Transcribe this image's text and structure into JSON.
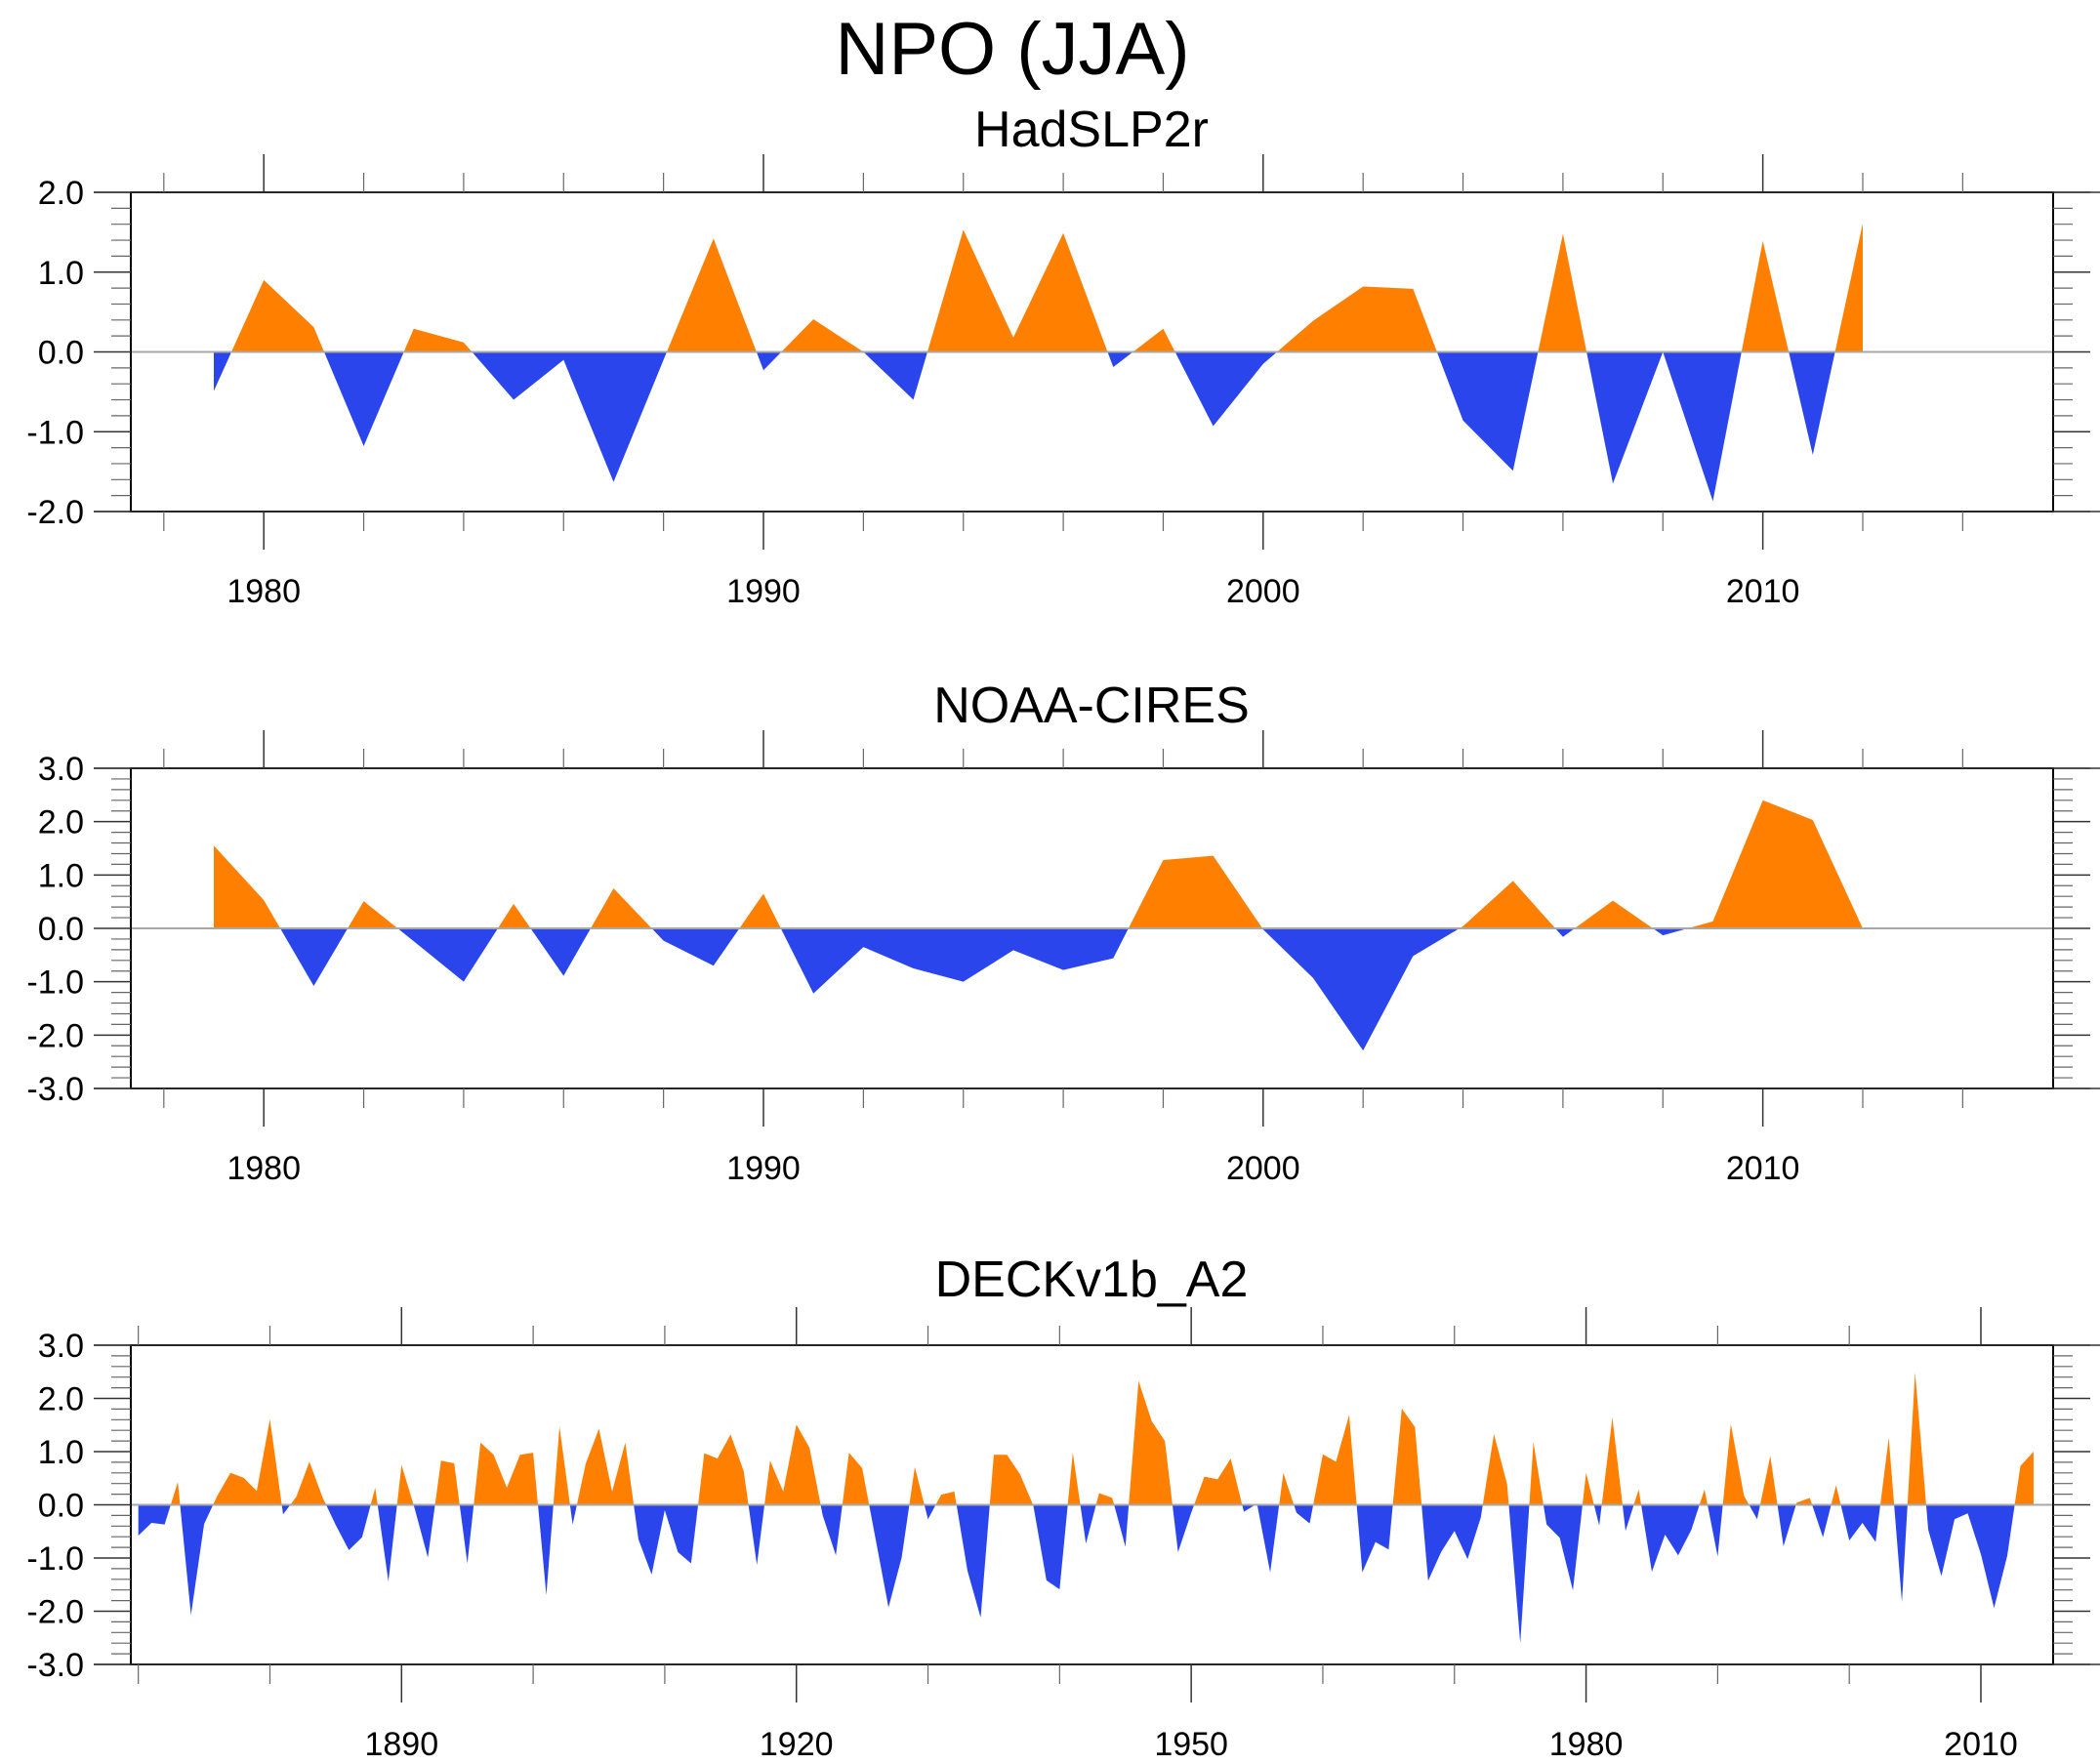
{
  "figure_title": "NPO (JJA)",
  "colors": {
    "positive": "#ff8000",
    "negative": "#2a45eb",
    "zero_line": "#a8a8a8"
  },
  "chart_data": [
    {
      "type": "area",
      "title": "HadSLP2r",
      "xlabel": "",
      "ylabel": "",
      "xlim": [
        1978,
        2014
      ],
      "ylim": [
        -2.0,
        2.0
      ],
      "xticks_major": [
        1980,
        1990,
        2000,
        2010
      ],
      "xticks_major_labels": [
        "1980",
        "1990",
        "2000",
        "2010"
      ],
      "xticks_minor_step": 2,
      "yticks": [
        2.0,
        1.0,
        0.0,
        -1.0,
        -2.0
      ],
      "ytick_labels": [
        "2.0",
        "1.0",
        "0.0",
        "-1.0",
        "-2.0"
      ],
      "yticks_minor_step": 0.2,
      "grid": false,
      "fill_above_zero": "orange",
      "fill_below_zero": "blue",
      "x": [
        1979,
        1980,
        1981,
        1982,
        1983,
        1984,
        1985,
        1986,
        1987,
        1988,
        1989,
        1990,
        1991,
        1992,
        1993,
        1994,
        1995,
        1996,
        1997,
        1998,
        1999,
        2000,
        2001,
        2002,
        2003,
        2004,
        2005,
        2006,
        2007,
        2008,
        2009,
        2010,
        2011,
        2012
      ],
      "values": [
        -0.49,
        0.9,
        0.31,
        -1.18,
        0.29,
        0.12,
        -0.6,
        -0.1,
        -1.63,
        -0.1,
        1.42,
        -0.23,
        0.41,
        0.0,
        -0.6,
        1.53,
        0.18,
        1.49,
        -0.19,
        0.29,
        -0.93,
        -0.15,
        0.39,
        0.82,
        0.79,
        -0.86,
        -1.49,
        1.48,
        -1.65,
        0.0,
        -1.87,
        1.39,
        -1.29,
        1.61
      ]
    },
    {
      "type": "area",
      "title": "NOAA-CIRES",
      "xlabel": "",
      "ylabel": "",
      "xlim": [
        1978,
        2014
      ],
      "ylim": [
        -3.0,
        3.0
      ],
      "xticks_major": [
        1980,
        1990,
        2000,
        2010
      ],
      "xticks_major_labels": [
        "1980",
        "1990",
        "2000",
        "2010"
      ],
      "xticks_minor_step": 2,
      "yticks": [
        3.0,
        2.0,
        1.0,
        0.0,
        -1.0,
        -2.0,
        -3.0
      ],
      "ytick_labels": [
        "3.0",
        "2.0",
        "1.0",
        "0.0",
        "-1.0",
        "-2.0",
        "-3.0"
      ],
      "yticks_minor_step": 0.2,
      "grid": false,
      "fill_above_zero": "orange",
      "fill_below_zero": "blue",
      "x": [
        1979,
        1980,
        1981,
        1982,
        1983,
        1984,
        1985,
        1986,
        1987,
        1988,
        1989,
        1990,
        1991,
        1992,
        1993,
        1994,
        1995,
        1996,
        1997,
        1998,
        1999,
        2000,
        2001,
        2002,
        2003,
        2004,
        2005,
        2006,
        2007,
        2008,
        2009,
        2010,
        2011,
        2012
      ],
      "values": [
        1.55,
        0.53,
        -1.08,
        0.51,
        -0.24,
        -1.0,
        0.46,
        -0.89,
        0.75,
        -0.23,
        -0.7,
        0.65,
        -1.22,
        -0.35,
        -0.75,
        -1.0,
        -0.41,
        -0.78,
        -0.56,
        1.28,
        1.36,
        -0.02,
        -0.93,
        -2.29,
        -0.52,
        0.04,
        0.89,
        -0.16,
        0.52,
        -0.13,
        0.13,
        2.4,
        2.03,
        0.0
      ]
    },
    {
      "type": "area",
      "title": "DECKv1b_A2",
      "xlabel": "",
      "ylabel": "",
      "xlim": [
        1869.5,
        2015.5
      ],
      "ylim": [
        -3.0,
        3.0
      ],
      "xticks_major": [
        1890,
        1920,
        1950,
        1980,
        2010
      ],
      "xticks_major_labels": [
        "1890",
        "1920",
        "1950",
        "1980",
        "2010"
      ],
      "xticks_minor_step": 10,
      "yticks": [
        3.0,
        2.0,
        1.0,
        0.0,
        -1.0,
        -2.0,
        -3.0
      ],
      "ytick_labels": [
        "3.0",
        "2.0",
        "1.0",
        "0.0",
        "-1.0",
        "-2.0",
        "-3.0"
      ],
      "yticks_minor_step": 0.2,
      "grid": false,
      "fill_above_zero": "orange",
      "fill_below_zero": "blue",
      "x_start": 1870,
      "x_end": 2014,
      "values": [
        -0.58,
        -0.34,
        -0.37,
        0.43,
        -2.07,
        -0.36,
        0.17,
        0.6,
        0.51,
        0.26,
        1.61,
        -0.18,
        0.15,
        0.81,
        0.14,
        -0.38,
        -0.85,
        -0.61,
        0.32,
        -1.44,
        0.75,
        -0.07,
        -0.99,
        0.83,
        0.78,
        -1.1,
        1.17,
        0.94,
        0.32,
        0.94,
        0.98,
        -1.7,
        1.47,
        -0.37,
        0.78,
        1.43,
        0.25,
        1.17,
        -0.65,
        -1.31,
        -0.1,
        -0.89,
        -1.1,
        0.97,
        0.87,
        1.32,
        0.63,
        -1.13,
        0.83,
        0.25,
        1.51,
        1.07,
        -0.2,
        -0.95,
        0.98,
        0.69,
        -0.62,
        -1.93,
        -0.99,
        0.71,
        -0.27,
        0.19,
        0.25,
        -1.24,
        -2.12,
        0.94,
        0.94,
        0.57,
        -0.01,
        -1.42,
        -1.59,
        0.98,
        -0.73,
        0.22,
        0.13,
        -0.79,
        2.33,
        1.57,
        1.2,
        -0.89,
        -0.15,
        0.53,
        0.48,
        0.87,
        -0.13,
        0.02,
        -1.27,
        0.6,
        -0.15,
        -0.35,
        0.95,
        0.81,
        1.69,
        -1.27,
        -0.7,
        -0.84,
        1.81,
        1.46,
        -1.43,
        -0.88,
        -0.49,
        -1.02,
        -0.24,
        1.33,
        0.39,
        -2.6,
        1.18,
        -0.37,
        -0.62,
        -1.61,
        0.6,
        -0.39,
        1.64,
        -0.49,
        0.29,
        -1.26,
        -0.56,
        -0.95,
        -0.47,
        0.29,
        -0.97,
        1.52,
        0.17,
        -0.27,
        0.92,
        -0.78,
        0.04,
        0.13,
        -0.61,
        0.37,
        -0.67,
        -0.34,
        -0.7,
        1.26,
        -1.83,
        2.49,
        -0.47,
        -1.34,
        -0.27,
        -0.16,
        -0.93,
        -1.94,
        -0.96,
        0.73,
        1.0
      ]
    }
  ]
}
